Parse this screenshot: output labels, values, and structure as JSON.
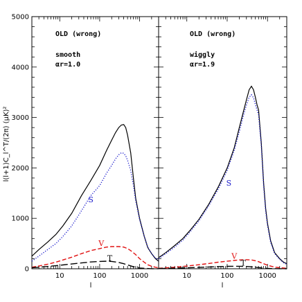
{
  "chart_data": [
    {
      "type": "line",
      "title_lines": [
        "OLD (wrong)",
        "smooth",
        "αr=1.0"
      ],
      "xlabel": "l",
      "ylabel": "l(l+1)C_l^T/(2π) (μK)²",
      "xscale": "log",
      "xlim": [
        2,
        3000
      ],
      "ylim": [
        0,
        5000
      ],
      "y_ticks": [
        0,
        1000,
        2000,
        3000,
        4000,
        5000
      ],
      "x_tick_labels": [
        "10",
        "100",
        "1000"
      ],
      "series": [
        {
          "name": "",
          "color": "#000000",
          "style": "solid",
          "x": [
            2,
            3,
            5,
            8,
            12,
            20,
            35,
            60,
            100,
            150,
            200,
            250,
            300,
            350,
            400,
            450,
            500,
            600,
            700,
            800,
            1000,
            1300,
            1600,
            2000,
            2500,
            3000
          ],
          "y": [
            250,
            380,
            530,
            680,
            850,
            1100,
            1450,
            1750,
            2050,
            2350,
            2550,
            2700,
            2800,
            2850,
            2860,
            2800,
            2650,
            2300,
            1800,
            1400,
            1000,
            650,
            420,
            300,
            200,
            150
          ]
        },
        {
          "name": "S",
          "color": "#1a1acc",
          "style": "dotted",
          "x": [
            2,
            3,
            5,
            8,
            12,
            20,
            35,
            60,
            100,
            150,
            200,
            250,
            300,
            350,
            400,
            450,
            500,
            600,
            700,
            800,
            1000,
            1300,
            1600,
            2000,
            2500,
            3000
          ],
          "y": [
            150,
            250,
            380,
            500,
            640,
            850,
            1150,
            1450,
            1650,
            1900,
            2050,
            2180,
            2260,
            2300,
            2290,
            2240,
            2150,
            1950,
            1650,
            1350,
            980,
            650,
            430,
            300,
            210,
            160
          ]
        },
        {
          "name": "V",
          "color": "#e01010",
          "style": "dashed",
          "x": [
            2,
            3,
            5,
            8,
            12,
            20,
            35,
            60,
            100,
            150,
            200,
            300,
            400,
            500,
            600,
            800,
            1000,
            1300,
            1600,
            2000,
            2500,
            3000
          ],
          "y": [
            30,
            55,
            90,
            130,
            175,
            230,
            300,
            360,
            400,
            430,
            440,
            440,
            430,
            400,
            360,
            280,
            200,
            130,
            80,
            50,
            30,
            20
          ]
        },
        {
          "name": "T",
          "color": "#000000",
          "style": "longdash",
          "x": [
            2,
            3,
            5,
            8,
            12,
            20,
            35,
            60,
            100,
            150,
            200,
            300,
            400,
            500,
            700,
            1000,
            1500,
            2000,
            3000
          ],
          "y": [
            20,
            30,
            45,
            60,
            75,
            95,
            115,
            135,
            145,
            150,
            145,
            125,
            100,
            75,
            40,
            15,
            5,
            2,
            1
          ]
        }
      ],
      "annotations": [
        {
          "text": "S",
          "x": 60,
          "y": 1320,
          "color": "#1a1acc"
        },
        {
          "text": "V",
          "x": 110,
          "y": 450,
          "color": "#e01010"
        },
        {
          "text": "T",
          "x": 180,
          "y": 160,
          "color": "#000000"
        }
      ]
    },
    {
      "type": "line",
      "title_lines": [
        "OLD (wrong)",
        "wiggly",
        "αr=1.9"
      ],
      "xlabel": "l",
      "ylabel": "",
      "xscale": "log",
      "xlim": [
        2,
        3000
      ],
      "ylim": [
        0,
        5000
      ],
      "x_tick_labels": [
        "10",
        "100",
        "1000"
      ],
      "series": [
        {
          "name": "",
          "color": "#000000",
          "style": "solid",
          "x": [
            2,
            3,
            5,
            8,
            12,
            20,
            35,
            60,
            100,
            150,
            200,
            250,
            300,
            350,
            400,
            450,
            500,
            550,
            600,
            700,
            800,
            900,
            1000,
            1200,
            1500,
            2000,
            2500,
            3000
          ],
          "y": [
            220,
            320,
            460,
            600,
            760,
            980,
            1280,
            1620,
            2000,
            2400,
            2800,
            3100,
            3350,
            3550,
            3620,
            3550,
            3400,
            3250,
            3150,
            2500,
            1700,
            1200,
            900,
            550,
            320,
            200,
            130,
            100
          ]
        },
        {
          "name": "S",
          "color": "#1a1acc",
          "style": "dotted",
          "x": [
            2,
            3,
            5,
            8,
            12,
            20,
            35,
            60,
            100,
            150,
            200,
            250,
            300,
            350,
            400,
            450,
            500,
            550,
            600,
            700,
            800,
            900,
            1000,
            1200,
            1500,
            2000,
            2500,
            3000
          ],
          "y": [
            200,
            300,
            430,
            570,
            730,
            950,
            1250,
            1580,
            1950,
            2350,
            2720,
            3020,
            3250,
            3400,
            3450,
            3390,
            3260,
            3150,
            3050,
            2450,
            1650,
            1150,
            860,
            520,
            300,
            190,
            120,
            90
          ]
        },
        {
          "name": "V",
          "color": "#e01010",
          "style": "dashed",
          "x": [
            2,
            3,
            5,
            8,
            12,
            20,
            35,
            60,
            100,
            150,
            200,
            300,
            400,
            500,
            600,
            800,
            1000,
            1300,
            1600,
            2000,
            3000
          ],
          "y": [
            10,
            18,
            30,
            45,
            60,
            80,
            105,
            130,
            150,
            165,
            175,
            180,
            175,
            160,
            140,
            100,
            70,
            45,
            30,
            20,
            10
          ]
        },
        {
          "name": "T",
          "color": "#000000",
          "style": "longdash",
          "x": [
            2,
            3,
            5,
            8,
            12,
            20,
            35,
            60,
            100,
            150,
            200,
            300,
            400,
            500,
            700,
            1000,
            1500,
            2000,
            3000
          ],
          "y": [
            5,
            8,
            12,
            17,
            22,
            28,
            35,
            42,
            48,
            50,
            50,
            45,
            38,
            30,
            18,
            8,
            3,
            1,
            0
          ]
        }
      ],
      "annotations": [
        {
          "text": "S",
          "x": 110,
          "y": 1650,
          "color": "#1a1acc"
        },
        {
          "text": "V",
          "x": 150,
          "y": 200,
          "color": "#e01010"
        },
        {
          "text": "T",
          "x": 250,
          "y": 60,
          "color": "#000000"
        }
      ]
    }
  ]
}
